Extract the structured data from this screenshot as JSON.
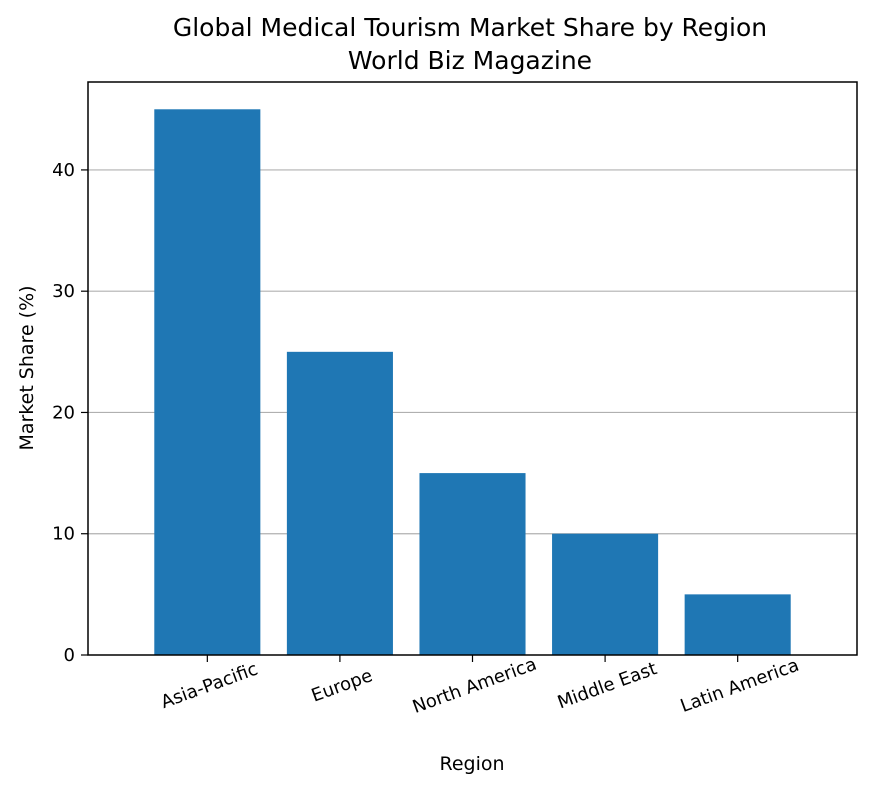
{
  "chart_data": {
    "type": "bar",
    "title": "Global Medical Tourism Market Share by Region",
    "subtitle": "World Biz Magazine",
    "xlabel": "Region",
    "ylabel": "Market Share (%)",
    "categories": [
      "Asia-Pacific",
      "Europe",
      "North America",
      "Middle East",
      "Latin America"
    ],
    "values": [
      45,
      25,
      15,
      10,
      5
    ],
    "ylim": [
      0,
      47.25
    ],
    "yticks": [
      0,
      10,
      20,
      30,
      40
    ],
    "grid": "horizontal",
    "legend": "none",
    "bar_color": "#1f77b4",
    "grid_color": "#b0b0b0"
  }
}
